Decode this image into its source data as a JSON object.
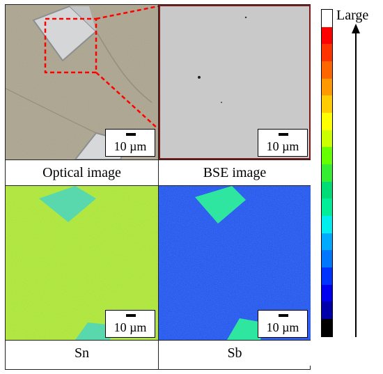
{
  "panels": {
    "optical": {
      "caption": "Optical image",
      "scale": "10 µm"
    },
    "bse": {
      "caption": "BSE image",
      "scale": "10 µm"
    },
    "sn": {
      "caption": "Sn",
      "scale": "10 µm"
    },
    "sb": {
      "caption": "Sb",
      "scale": "10 µm"
    }
  },
  "legend": {
    "label": "Large",
    "colors": [
      "#ffffff",
      "#ff0000",
      "#ff3300",
      "#ff6600",
      "#ff9900",
      "#ffcc00",
      "#ffff00",
      "#ccff00",
      "#66ff00",
      "#33ee33",
      "#00dd77",
      "#00ee99",
      "#00eeee",
      "#00aaff",
      "#0077ff",
      "#0033ff",
      "#0000ee",
      "#0000aa",
      "#000000"
    ]
  },
  "colors": {
    "optical_background": "#a9a28c",
    "bse_background": "#c9c9c9",
    "sn_background": "#9adf3a",
    "sb_background": "#1f3ee8",
    "callout": "#ff0000",
    "bse_border": "#7a1a1a"
  }
}
